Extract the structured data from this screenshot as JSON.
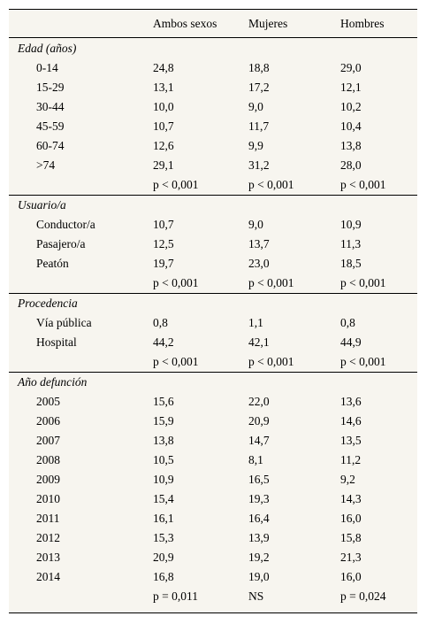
{
  "headers": [
    "",
    "Ambos sexos",
    "Mujeres",
    "Hombres"
  ],
  "sections": [
    {
      "title": "Edad (años)",
      "rows": [
        {
          "label": "0-14",
          "values": [
            "24,8",
            "18,8",
            "29,0"
          ]
        },
        {
          "label": "15-29",
          "values": [
            "13,1",
            "17,2",
            "12,1"
          ]
        },
        {
          "label": "30-44",
          "values": [
            "10,0",
            "9,0",
            "10,2"
          ]
        },
        {
          "label": "45-59",
          "values": [
            "10,7",
            "11,7",
            "10,4"
          ]
        },
        {
          "label": "60-74",
          "values": [
            "12,6",
            "9,9",
            "13,8"
          ]
        },
        {
          "label": ">74",
          "values": [
            "29,1",
            "31,2",
            "28,0"
          ]
        }
      ],
      "pvalues": [
        "p < 0,001",
        "p < 0,001",
        "p < 0,001"
      ]
    },
    {
      "title": "Usuario/a",
      "rows": [
        {
          "label": "Conductor/a",
          "values": [
            "10,7",
            "9,0",
            "10,9"
          ]
        },
        {
          "label": "Pasajero/a",
          "values": [
            "12,5",
            "13,7",
            "11,3"
          ]
        },
        {
          "label": "Peatón",
          "values": [
            "19,7",
            "23,0",
            "18,5"
          ]
        }
      ],
      "pvalues": [
        "p < 0,001",
        "p < 0,001",
        "p < 0,001"
      ]
    },
    {
      "title": "Procedencia",
      "rows": [
        {
          "label": "Vía pública",
          "values": [
            "0,8",
            "1,1",
            "0,8"
          ]
        },
        {
          "label": "Hospital",
          "values": [
            "44,2",
            "42,1",
            "44,9"
          ]
        }
      ],
      "pvalues": [
        "p < 0,001",
        "p < 0,001",
        "p < 0,001"
      ]
    },
    {
      "title": "Año defunción",
      "rows": [
        {
          "label": "2005",
          "values": [
            "15,6",
            "22,0",
            "13,6"
          ]
        },
        {
          "label": "2006",
          "values": [
            "15,9",
            "20,9",
            "14,6"
          ]
        },
        {
          "label": "2007",
          "values": [
            "13,8",
            "14,7",
            "13,5"
          ]
        },
        {
          "label": "2008",
          "values": [
            "10,5",
            "8,1",
            "11,2"
          ]
        },
        {
          "label": "2009",
          "values": [
            "10,9",
            "16,5",
            "9,2"
          ]
        },
        {
          "label": "2010",
          "values": [
            "15,4",
            "19,3",
            "14,3"
          ]
        },
        {
          "label": "2011",
          "values": [
            "16,1",
            "16,4",
            "16,0"
          ]
        },
        {
          "label": "2012",
          "values": [
            "15,3",
            "13,9",
            "15,8"
          ]
        },
        {
          "label": "2013",
          "values": [
            "20,9",
            "19,2",
            "21,3"
          ]
        },
        {
          "label": "2014",
          "values": [
            "16,8",
            "19,0",
            "16,0"
          ]
        }
      ],
      "pvalues": [
        "p = 0,011",
        "NS",
        "p = 0,024"
      ]
    }
  ]
}
